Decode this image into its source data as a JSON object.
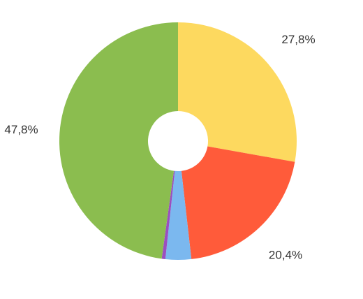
{
  "chart_data": {
    "type": "donut",
    "values": [
      27.8,
      20.4,
      3.5,
      0.5,
      47.8
    ],
    "value_labels": [
      "27,8%",
      "20,4%",
      null,
      null,
      "47,8%"
    ],
    "colors": [
      "#fdd95f",
      "#ff5b3a",
      "#7bb8ef",
      "#9b4fc0",
      "#8bbd4f"
    ]
  }
}
